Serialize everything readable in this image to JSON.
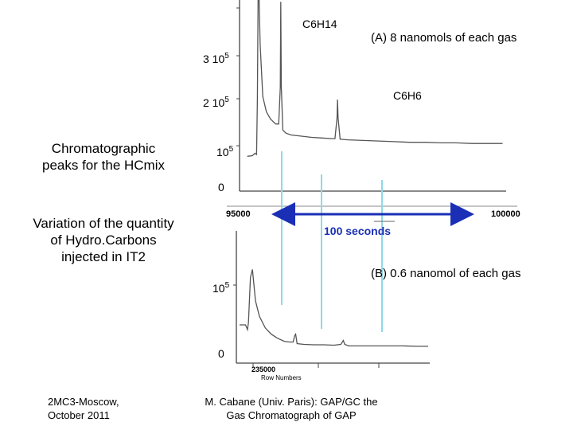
{
  "side_text": {
    "peaks_caption": "Chromatographic peaks for the HCmix",
    "variation_caption": "Variation of the quantity of Hydro.Carbons injected in IT2"
  },
  "footer": {
    "left": "2MC3-Moscow, October 2011",
    "center": "M. Cabane (Univ. Paris): GAP/GC the Gas Chromatograph of GAP"
  },
  "scale_note": "100 seconds",
  "colors": {
    "trace": "#555555",
    "marker": "#8fd9e8",
    "arrow": "#1a2fb5"
  },
  "chart_data": [
    {
      "type": "line",
      "title": "(A) 8 nanomols of each gas",
      "x_ticks": [
        "95000",
        "100000"
      ],
      "xlim": [
        95000,
        100000
      ],
      "y_ticks": [
        {
          "value": 300000,
          "label_base": "3 10",
          "label_exp": "5"
        },
        {
          "value": 200000,
          "label_base": "2 10",
          "label_exp": "5"
        },
        {
          "value": 100000,
          "label_base": "10",
          "label_exp": "5"
        },
        {
          "value": 0,
          "label_base": "0",
          "label_exp": ""
        }
      ],
      "ylim": [
        0,
        420000
      ],
      "annotations": [
        {
          "label": "C6H14",
          "x": 95800
        },
        {
          "label": "C6H6",
          "x": 98000
        }
      ],
      "series": [
        {
          "values": [
            [
              95150,
              57000
            ],
            [
              95250,
              58000
            ],
            [
              95300,
              62000
            ],
            [
              95330,
              60000
            ],
            [
              95345,
              150000
            ],
            [
              95360,
              430000
            ],
            [
              95380,
              430000
            ],
            [
              95400,
              240000
            ],
            [
              95450,
              155000
            ],
            [
              95520,
              130000
            ],
            [
              95600,
              118000
            ],
            [
              95700,
              110000
            ],
            [
              95760,
              110000
            ],
            [
              95790,
              170000
            ],
            [
              95800,
              310000
            ],
            [
              95810,
              170000
            ],
            [
              95840,
              100000
            ],
            [
              95900,
              95000
            ],
            [
              96000,
              92000
            ],
            [
              96200,
              90000
            ],
            [
              96400,
              88000
            ],
            [
              96600,
              87000
            ],
            [
              96800,
              86000
            ],
            [
              96850,
              86000
            ],
            [
              96890,
              120000
            ],
            [
              96900,
              150000
            ],
            [
              96910,
              120000
            ],
            [
              96950,
              85000
            ],
            [
              97100,
              84000
            ],
            [
              97400,
              83000
            ],
            [
              97700,
              82000
            ],
            [
              98000,
              81000
            ],
            [
              98300,
              80000
            ],
            [
              98600,
              80000
            ],
            [
              98900,
              79000
            ],
            [
              99200,
              79000
            ],
            [
              99500,
              78000
            ],
            [
              99800,
              78000
            ],
            [
              100100,
              78000
            ]
          ]
        }
      ]
    },
    {
      "type": "line",
      "title": "(B) 0.6 nanomol of each gas",
      "x_ticks": [
        "235000"
      ],
      "xlabel": "Row Numbers",
      "y_ticks": [
        {
          "value": 100000,
          "label_base": "10",
          "label_exp": "5"
        },
        {
          "value": 0,
          "label_base": "0",
          "label_exp": ""
        }
      ],
      "ylim": [
        0,
        140000
      ],
      "series": [
        {
          "values": [
            [
              234800,
              49000
            ],
            [
              234860,
              49000
            ],
            [
              234880,
              43000
            ],
            [
              234890,
              52000
            ],
            [
              234910,
              110000
            ],
            [
              234930,
              120000
            ],
            [
              234960,
              80000
            ],
            [
              235000,
              60000
            ],
            [
              235060,
              45000
            ],
            [
              235120,
              37000
            ],
            [
              235180,
              32000
            ],
            [
              235250,
              28000
            ],
            [
              235300,
              27000
            ],
            [
              235340,
              27000
            ],
            [
              235355,
              35000
            ],
            [
              235365,
              37000
            ],
            [
              235380,
              25000
            ],
            [
              235450,
              24000
            ],
            [
              235550,
              23500
            ],
            [
              235650,
              23500
            ],
            [
              235750,
              23000
            ],
            [
              235820,
              24000
            ],
            [
              235845,
              29000
            ],
            [
              235860,
              24000
            ],
            [
              235900,
              22000
            ],
            [
              236000,
              22000
            ],
            [
              236150,
              22000
            ],
            [
              236300,
              22000
            ],
            [
              236450,
              22000
            ],
            [
              236600,
              21500
            ],
            [
              236700,
              21500
            ]
          ]
        }
      ]
    }
  ]
}
